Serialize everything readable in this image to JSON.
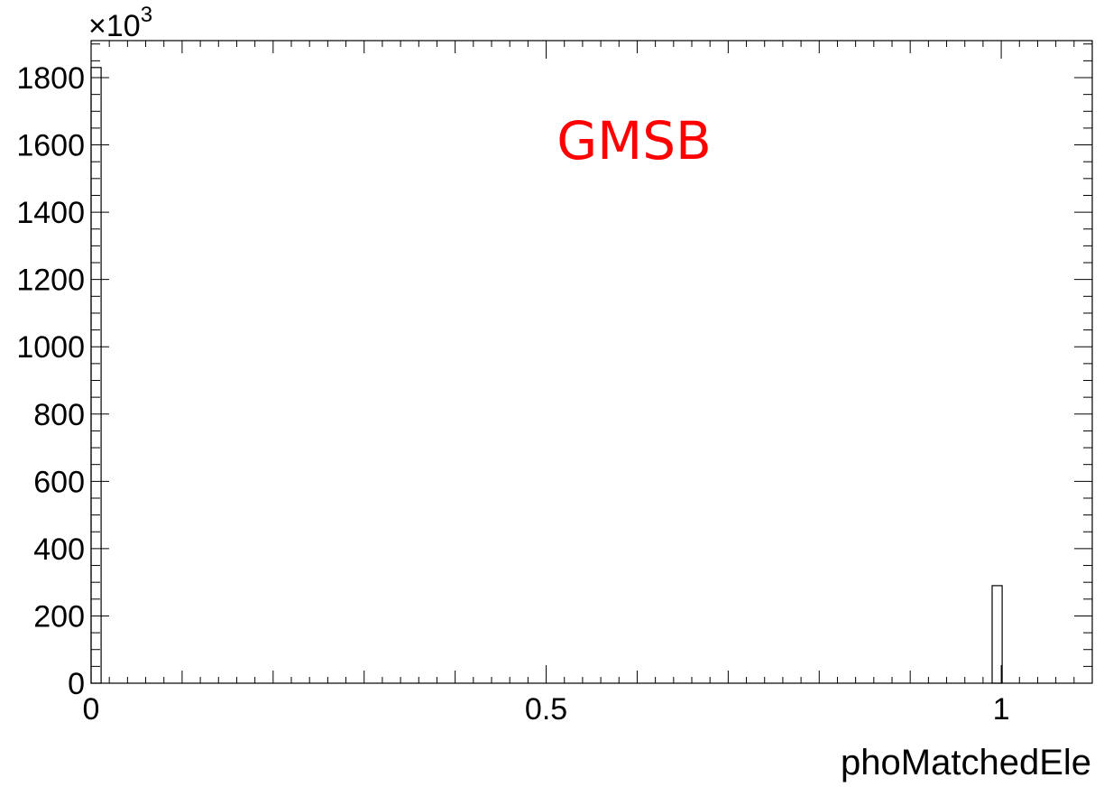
{
  "chart_data": {
    "type": "bar",
    "title": "",
    "xlabel": "phoMatchedEle",
    "ylabel": "",
    "xlim": [
      0,
      1.1
    ],
    "ylim": [
      0,
      1910
    ],
    "y_multiplier_label": "×10",
    "y_multiplier_exponent": "3",
    "grid": false,
    "x_ticks": [
      {
        "value": 0,
        "label": "0"
      },
      {
        "value": 0.5,
        "label": "0.5"
      },
      {
        "value": 1,
        "label": "1"
      }
    ],
    "y_ticks": [
      {
        "value": 0,
        "label": "0"
      },
      {
        "value": 200,
        "label": "200"
      },
      {
        "value": 400,
        "label": "400"
      },
      {
        "value": 600,
        "label": "600"
      },
      {
        "value": 800,
        "label": "800"
      },
      {
        "value": 1000,
        "label": "1000"
      },
      {
        "value": 1200,
        "label": "1200"
      },
      {
        "value": 1400,
        "label": "1400"
      },
      {
        "value": 1600,
        "label": "1600"
      },
      {
        "value": 1800,
        "label": "1800"
      }
    ],
    "bins": [
      {
        "x0": 0,
        "x1": 0.011,
        "value": 1830
      },
      {
        "x0": 0.99,
        "x1": 1.001,
        "value": 290
      }
    ],
    "annotation": {
      "text": "GMSB",
      "color": "#ff0000"
    },
    "line_color": "#000000"
  }
}
